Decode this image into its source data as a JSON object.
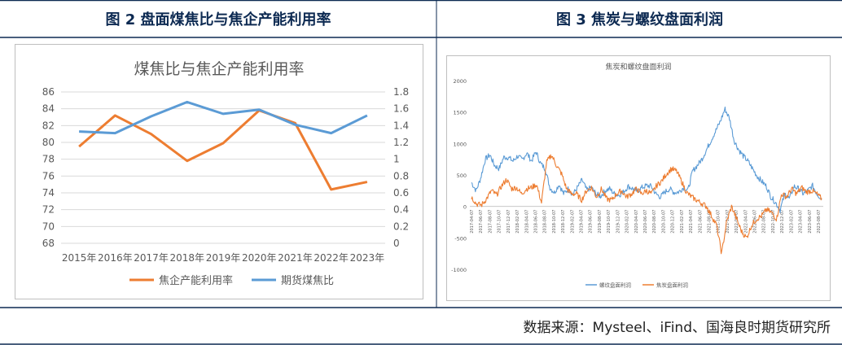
{
  "headers": {
    "left": "图 2    盘面煤焦比与焦企产能利用率",
    "right": "图 3    焦炭与螺纹盘面利润"
  },
  "source": "数据来源：Mysteel、iFind、国海良时期货研究所",
  "colors": {
    "orange": "#ED7D31",
    "blue": "#5B9BD5",
    "frame": "#0d2a52",
    "grid": "#d9d9d9"
  },
  "chart_data": [
    {
      "type": "line",
      "title": "煤焦比与焦企产能利用率",
      "categories": [
        "2015年",
        "2016年",
        "2017年",
        "2018年",
        "2019年",
        "2020年",
        "2021年",
        "2022年",
        "2023年"
      ],
      "y_left_ticks": [
        "86",
        "84",
        "82",
        "80",
        "78",
        "76",
        "74",
        "72",
        "70",
        "68"
      ],
      "y_right_ticks": [
        "1.8",
        "1.6",
        "1.4",
        "1.2",
        "1",
        "0.8",
        "0.6",
        "0.4",
        "0.2",
        "0"
      ],
      "ylim_left": [
        68,
        86
      ],
      "ylim_right": [
        0,
        1.8
      ],
      "series": [
        {
          "name": "焦企产能利用率",
          "axis": "left",
          "color": "#ED7D31",
          "values": [
            79.5,
            83.2,
            81.0,
            77.8,
            79.9,
            83.8,
            82.3,
            74.4,
            75.3
          ]
        },
        {
          "name": "期货煤焦比",
          "axis": "right",
          "color": "#5B9BD5",
          "values": [
            1.33,
            1.31,
            1.51,
            1.68,
            1.54,
            1.59,
            1.41,
            1.31,
            1.52
          ]
        }
      ],
      "legend": "bottom",
      "grid": true
    },
    {
      "type": "line",
      "title": "焦炭和螺纹盘面利润",
      "y_ticks": [
        "2000",
        "1500",
        "1000",
        "500",
        "0",
        "-500",
        "-1000"
      ],
      "ylim": [
        -1000,
        2000
      ],
      "x_ticks": [
        "2017-04-07",
        "2017-06-07",
        "2017-08-07",
        "2017-10-07",
        "2017-12-07",
        "2018-02-07",
        "2018-04-07",
        "2018-06-07",
        "2018-08-07",
        "2018-10-07",
        "2018-12-07",
        "2019-02-07",
        "2019-04-07",
        "2019-06-07",
        "2019-08-07",
        "2019-10-07",
        "2019-12-07",
        "2020-02-07",
        "2020-04-07",
        "2020-06-07",
        "2020-08-07",
        "2020-10-07",
        "2020-12-07",
        "2021-02-07",
        "2021-04-07",
        "2021-06-07",
        "2021-08-07",
        "2021-10-07",
        "2021-12-07",
        "2022-02-07",
        "2022-04-07",
        "2022-06-07",
        "2022-08-07",
        "2022-10-07",
        "2022-12-07",
        "2023-02-07",
        "2023-04-07",
        "2023-06-07",
        "2023-08-07"
      ],
      "series": [
        {
          "name": "螺纹盘面利润",
          "color": "#5B9BD5",
          "keypoints": [
            [
              0,
              380
            ],
            [
              1,
              250
            ],
            [
              2,
              450
            ],
            [
              3,
              750
            ],
            [
              4,
              820
            ],
            [
              5,
              650
            ],
            [
              6,
              600
            ],
            [
              7,
              780
            ],
            [
              8,
              780
            ],
            [
              9,
              720
            ],
            [
              10,
              800
            ],
            [
              11,
              740
            ],
            [
              12,
              850
            ],
            [
              13,
              720
            ],
            [
              14,
              870
            ],
            [
              15,
              680
            ],
            [
              16,
              600
            ],
            [
              17,
              300
            ],
            [
              18,
              220
            ],
            [
              19,
              350
            ],
            [
              20,
              200
            ],
            [
              21,
              280
            ],
            [
              22,
              190
            ],
            [
              23,
              300
            ],
            [
              24,
              420
            ],
            [
              25,
              260
            ],
            [
              26,
              300
            ],
            [
              27,
              200
            ],
            [
              28,
              160
            ],
            [
              29,
              250
            ],
            [
              30,
              280
            ],
            [
              31,
              200
            ],
            [
              32,
              180
            ],
            [
              33,
              230
            ],
            [
              34,
              320
            ],
            [
              35,
              280
            ],
            [
              36,
              240
            ],
            [
              37,
              300
            ],
            [
              38,
              330
            ],
            [
              39,
              320
            ],
            [
              40,
              200
            ],
            [
              41,
              150
            ],
            [
              42,
              230
            ],
            [
              43,
              280
            ],
            [
              44,
              220
            ],
            [
              45,
              230
            ],
            [
              46,
              300
            ],
            [
              47,
              260
            ],
            [
              48,
              560
            ],
            [
              49,
              650
            ],
            [
              50,
              750
            ],
            [
              51,
              900
            ],
            [
              52,
              1050
            ],
            [
              53,
              1200
            ],
            [
              54,
              1350
            ],
            [
              55,
              1550
            ],
            [
              56,
              1400
            ],
            [
              57,
              1050
            ],
            [
              58,
              900
            ],
            [
              59,
              800
            ],
            [
              60,
              720
            ],
            [
              61,
              600
            ],
            [
              62,
              480
            ],
            [
              63,
              400
            ],
            [
              64,
              320
            ],
            [
              65,
              150
            ],
            [
              66,
              60
            ],
            [
              67,
              -60
            ],
            [
              68,
              200
            ],
            [
              69,
              120
            ],
            [
              70,
              320
            ],
            [
              71,
              280
            ],
            [
              72,
              200
            ],
            [
              73,
              250
            ],
            [
              74,
              330
            ],
            [
              75,
              200
            ],
            [
              76,
              120
            ]
          ]
        },
        {
          "name": "焦炭盘面利润",
          "color": "#ED7D31",
          "keypoints": [
            [
              0,
              150
            ],
            [
              1,
              40
            ],
            [
              2,
              20
            ],
            [
              3,
              120
            ],
            [
              4,
              250
            ],
            [
              5,
              180
            ],
            [
              6,
              320
            ],
            [
              7,
              430
            ],
            [
              8,
              280
            ],
            [
              9,
              300
            ],
            [
              10,
              200
            ],
            [
              11,
              280
            ],
            [
              12,
              300
            ],
            [
              13,
              350
            ],
            [
              14,
              60
            ],
            [
              15,
              700
            ],
            [
              16,
              820
            ],
            [
              17,
              650
            ],
            [
              18,
              520
            ],
            [
              19,
              280
            ],
            [
              20,
              200
            ],
            [
              21,
              200
            ],
            [
              22,
              100
            ],
            [
              23,
              250
            ],
            [
              24,
              300
            ],
            [
              25,
              150
            ],
            [
              26,
              280
            ],
            [
              27,
              120
            ],
            [
              28,
              100
            ],
            [
              29,
              200
            ],
            [
              30,
              250
            ],
            [
              31,
              150
            ],
            [
              32,
              200
            ],
            [
              33,
              280
            ],
            [
              34,
              200
            ],
            [
              35,
              250
            ],
            [
              36,
              200
            ],
            [
              37,
              330
            ],
            [
              38,
              400
            ],
            [
              39,
              520
            ],
            [
              40,
              600
            ],
            [
              41,
              560
            ],
            [
              42,
              400
            ],
            [
              43,
              220
            ],
            [
              44,
              150
            ],
            [
              45,
              100
            ],
            [
              46,
              50
            ],
            [
              47,
              0
            ],
            [
              48,
              -150
            ],
            [
              49,
              -300
            ],
            [
              50,
              -750
            ],
            [
              51,
              -250
            ],
            [
              52,
              0
            ],
            [
              53,
              -200
            ],
            [
              54,
              -400
            ],
            [
              55,
              -500
            ],
            [
              56,
              -300
            ],
            [
              57,
              -200
            ],
            [
              58,
              -150
            ],
            [
              59,
              -50
            ],
            [
              60,
              -100
            ],
            [
              61,
              -200
            ],
            [
              62,
              200
            ],
            [
              63,
              150
            ],
            [
              64,
              280
            ],
            [
              65,
              200
            ],
            [
              66,
              300
            ],
            [
              67,
              230
            ],
            [
              68,
              250
            ],
            [
              69,
              200
            ],
            [
              70,
              120
            ]
          ]
        }
      ],
      "legend": "bottom",
      "grid": false
    }
  ]
}
